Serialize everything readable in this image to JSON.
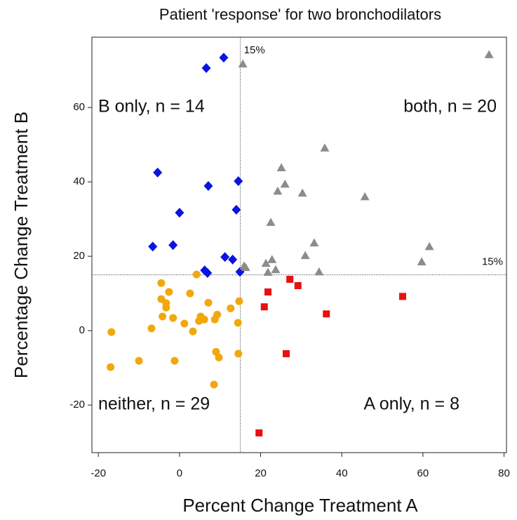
{
  "chart_data": {
    "type": "scatter",
    "title": "Patient 'response' for two bronchodilators",
    "x_label": "Percent Change Treatment A",
    "y_label": "Percentage Change Treatment B",
    "xlim": [
      -21.6,
      80.6
    ],
    "ylim": [
      -32.8,
      78.9
    ],
    "xticks": [
      -20,
      0,
      20,
      40,
      60,
      80
    ],
    "yticks": [
      -20,
      0,
      20,
      40,
      60
    ],
    "grid": false,
    "vline": {
      "value": 15,
      "label": "15%"
    },
    "hline": {
      "value": 15,
      "label": "15%"
    },
    "annotations": [
      "B only, n = 14",
      "both, n = 20",
      "neither, n = 29",
      "A only, n = 8"
    ],
    "series": [
      {
        "color": "#0a14e0",
        "marker": "diamond",
        "x": [
          10.9,
          6.6,
          -5.4,
          7.1,
          14.5,
          0,
          14.0,
          -6.6,
          -1.6,
          11.2,
          13.1,
          6.2,
          6.9,
          14.9
        ],
        "values": [
          73.4,
          70.6,
          42.5,
          38.9,
          40.2,
          31.7,
          32.5,
          22.6,
          23.0,
          19.8,
          19.1,
          16.2,
          15.5,
          15.8
        ]
      },
      {
        "color": "#8c8c8c",
        "marker": "triangle",
        "x": [
          15.6,
          76.3,
          35.8,
          25.1,
          26.0,
          24.2,
          30.3,
          45.7,
          22.5,
          33.2,
          31.0,
          61.6,
          59.7,
          22.8,
          21.3,
          15.9,
          23.7,
          21.8,
          34.4,
          16.3
        ],
        "values": [
          71.7,
          74.2,
          49.1,
          43.8,
          39.4,
          37.5,
          37.0,
          36.0,
          29.1,
          23.6,
          20.2,
          22.6,
          18.5,
          19.1,
          18.1,
          17.4,
          16.4,
          15.7,
          15.8,
          17.0
        ]
      },
      {
        "color": "#e81010",
        "marker": "square",
        "x": [
          27.2,
          21.8,
          29.2,
          20.9,
          55.0,
          36.2,
          26.3,
          19.6
        ],
        "values": [
          13.8,
          10.4,
          12.1,
          6.4,
          9.2,
          4.5,
          -6.2,
          -27.5
        ]
      },
      {
        "color": "#f2a70d",
        "marker": "circle",
        "x": [
          -4.5,
          4.2,
          -2.6,
          2.6,
          -3.3,
          7.1,
          14.7,
          -4.5,
          -3.3,
          12.6,
          -4.2,
          -1.6,
          1.2,
          9.3,
          5.2,
          6.1,
          4.8,
          8.7,
          14.4,
          -6.9,
          3.3,
          -16.8,
          -17.0,
          -10.0,
          -1.2,
          9.0,
          9.7,
          14.5,
          8.5
        ],
        "values": [
          12.8,
          15.1,
          10.4,
          10.0,
          7.4,
          7.5,
          7.9,
          8.5,
          6.2,
          6.0,
          3.8,
          3.4,
          1.9,
          4.3,
          3.8,
          3.0,
          2.6,
          3.0,
          2.1,
          0.6,
          -0.2,
          -0.4,
          -9.8,
          -8.1,
          -8.1,
          -5.7,
          -7.2,
          -6.2,
          -14.5
        ]
      }
    ]
  }
}
